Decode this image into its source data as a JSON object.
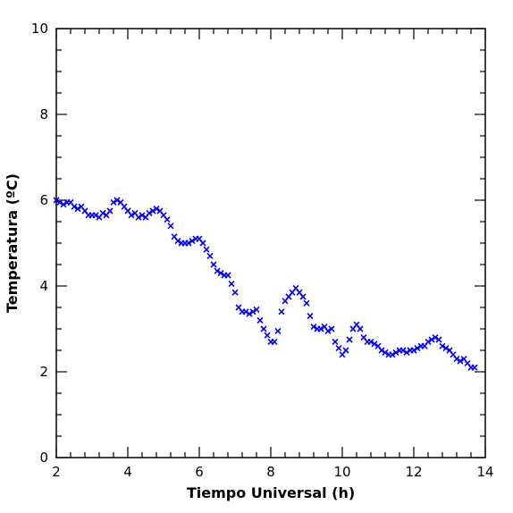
{
  "chart_data": {
    "type": "scatter",
    "xlabel": "Tiempo Universal (h)",
    "ylabel": "Temperatura (ºC)",
    "xlim": [
      2,
      14
    ],
    "ylim": [
      0,
      10
    ],
    "x_ticks": [
      2,
      4,
      6,
      8,
      10,
      12,
      14
    ],
    "y_ticks": [
      0,
      2,
      4,
      6,
      8,
      10
    ],
    "x_ticks_text": [
      "2",
      "4",
      "6",
      "8",
      "10",
      "12",
      "14"
    ],
    "y_ticks_text": [
      "0",
      "2",
      "4",
      "6",
      "8",
      "10"
    ],
    "marker": "x",
    "color": "#0000ff",
    "grid": false,
    "series": [
      {
        "x": [
          2.0,
          2.1,
          2.2,
          2.3,
          2.4,
          2.5,
          2.6,
          2.7,
          2.8,
          2.9,
          3.0,
          3.1,
          3.2,
          3.3,
          3.4,
          3.5,
          3.6,
          3.7,
          3.8,
          3.9,
          4.0,
          4.1,
          4.2,
          4.3,
          4.4,
          4.5,
          4.6,
          4.7,
          4.8,
          4.9,
          5.0,
          5.1,
          5.2,
          5.3,
          5.4,
          5.5,
          5.6,
          5.7,
          5.8,
          5.9,
          6.0,
          6.1,
          6.2,
          6.3,
          6.4,
          6.5,
          6.6,
          6.7,
          6.8,
          6.9,
          7.0,
          7.1,
          7.2,
          7.3,
          7.4,
          7.5,
          7.6,
          7.7,
          7.8,
          7.9,
          8.0,
          8.1,
          8.2,
          8.3,
          8.4,
          8.5,
          8.6,
          8.7,
          8.8,
          8.9,
          9.0,
          9.1,
          9.2,
          9.3,
          9.4,
          9.5,
          9.6,
          9.7,
          9.8,
          9.9,
          10.0,
          10.1,
          10.2,
          10.3,
          10.4,
          10.5,
          10.6,
          10.7,
          10.8,
          10.9,
          11.0,
          11.1,
          11.2,
          11.3,
          11.4,
          11.5,
          11.6,
          11.7,
          11.8,
          11.9,
          12.0,
          12.1,
          12.2,
          12.3,
          12.4,
          12.5,
          12.6,
          12.7,
          12.8,
          12.9,
          13.0,
          13.1,
          13.2,
          13.3,
          13.4,
          13.5,
          13.6,
          13.7
        ],
        "y": [
          6.0,
          5.95,
          5.9,
          5.95,
          5.95,
          5.85,
          5.8,
          5.85,
          5.75,
          5.65,
          5.65,
          5.65,
          5.6,
          5.7,
          5.65,
          5.75,
          5.95,
          6.0,
          5.95,
          5.85,
          5.75,
          5.65,
          5.7,
          5.6,
          5.65,
          5.6,
          5.7,
          5.75,
          5.8,
          5.75,
          5.65,
          5.55,
          5.4,
          5.15,
          5.05,
          5.0,
          5.0,
          5.0,
          5.05,
          5.1,
          5.1,
          5.0,
          4.85,
          4.7,
          4.5,
          4.35,
          4.3,
          4.25,
          4.25,
          4.05,
          3.85,
          3.5,
          3.4,
          3.4,
          3.35,
          3.4,
          3.45,
          3.2,
          3.0,
          2.85,
          2.7,
          2.7,
          2.95,
          3.4,
          3.65,
          3.75,
          3.85,
          3.95,
          3.85,
          3.75,
          3.6,
          3.3,
          3.05,
          3.0,
          3.0,
          3.05,
          2.95,
          3.0,
          2.7,
          2.55,
          2.4,
          2.5,
          2.75,
          3.0,
          3.1,
          3.0,
          2.8,
          2.7,
          2.7,
          2.65,
          2.6,
          2.5,
          2.45,
          2.4,
          2.4,
          2.45,
          2.5,
          2.5,
          2.45,
          2.5,
          2.5,
          2.55,
          2.6,
          2.6,
          2.7,
          2.75,
          2.8,
          2.75,
          2.6,
          2.55,
          2.5,
          2.4,
          2.3,
          2.25,
          2.3,
          2.2,
          2.1,
          2.1
        ]
      }
    ]
  }
}
